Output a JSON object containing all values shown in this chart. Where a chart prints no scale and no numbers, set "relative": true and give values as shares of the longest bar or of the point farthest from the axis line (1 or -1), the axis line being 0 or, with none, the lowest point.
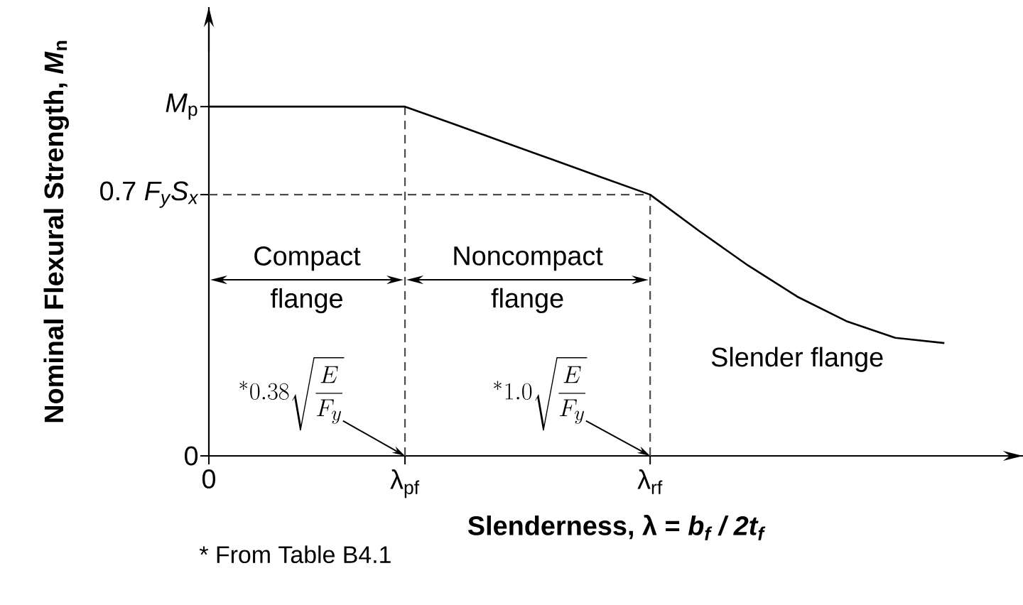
{
  "chart_data": {
    "type": "line",
    "relative": true,
    "xlabel": "Slenderness, λ = *b$_{f}$ / 2t$_{f}$*",
    "ylabel": "Nominal Flexural Strength, *M*$_{n}$",
    "categories": [
      "0",
      null,
      null,
      null,
      "λ$_{pf}$",
      null,
      null,
      null,
      null,
      "λ$_{rf}$",
      null,
      null,
      null,
      null,
      null,
      null
    ],
    "series": [
      {
        "line_style": "solid",
        "color": "#000000",
        "values": [
          1.0,
          1.0,
          1.0,
          1.0,
          1.0,
          0.95,
          0.899,
          0.849,
          0.798,
          0.748,
          0.644,
          0.545,
          0.456,
          0.386,
          0.338,
          0.323
        ]
      }
    ],
    "ref_lines": [
      {
        "axis": "x",
        "value": "λ$_{pf}$",
        "color": "#4d4d4d",
        "line_style": "dashed"
      },
      {
        "axis": "x",
        "value": "λ$_{rf}$",
        "color": "#4d4d4d",
        "line_style": "dashed"
      },
      {
        "axis": "y",
        "value": 0.748,
        "label": "0.7 *F$_{y}$S$_{x}$*",
        "color": "#4d4d4d",
        "line_style": "dashed"
      }
    ],
    "annotations": [
      "Compact flange",
      "Noncompact flange",
      "Slender flange",
      "^{*}0.38\\sqrt{\\dfrac{E}{F_y}}",
      "^{*}1.0\\sqrt{\\dfrac{E}{F_y}}",
      "* From Table B4.1",
      {
        "text": "*M*$_{p}$",
        "x": "0",
        "y": 1.0
      },
      "0"
    ]
  }
}
